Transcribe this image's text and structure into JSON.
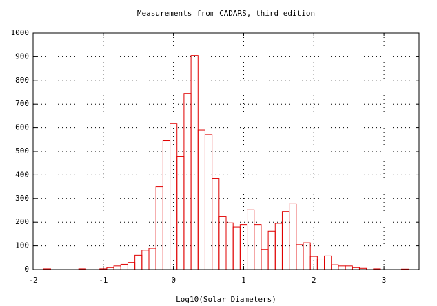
{
  "chart_data": {
    "type": "histogram",
    "title": "Measurements from CADARS, third edition",
    "xlabel": "Log10(Solar Diameters)",
    "bins": [
      -1.95,
      -1.85,
      -1.75,
      -1.65,
      -1.55,
      -1.45,
      -1.35,
      -1.25,
      -1.15,
      -1.05,
      -0.95,
      -0.85,
      -0.75,
      -0.65,
      -0.55,
      -0.45,
      -0.35,
      -0.25,
      -0.15,
      -0.05,
      0.05,
      0.15,
      0.25,
      0.35,
      0.45,
      0.55,
      0.65,
      0.75,
      0.85,
      0.95,
      1.05,
      1.15,
      1.25,
      1.35,
      1.45,
      1.55,
      1.65,
      1.75,
      1.85,
      1.95,
      2.05,
      2.15,
      2.25,
      2.35,
      2.45,
      2.55,
      2.65,
      2.75,
      2.85,
      2.95,
      3.05,
      3.15,
      3.25,
      3.35
    ],
    "values": [
      0,
      3,
      0,
      0,
      0,
      0,
      3,
      0,
      0,
      3,
      8,
      15,
      22,
      30,
      60,
      82,
      90,
      350,
      545,
      617,
      478,
      745,
      905,
      590,
      570,
      385,
      225,
      197,
      180,
      190,
      252,
      190,
      85,
      162,
      195,
      245,
      278,
      105,
      113,
      55,
      45,
      57,
      20,
      15,
      15,
      8,
      5,
      0,
      3,
      0,
      0,
      0,
      2
    ],
    "color": "#e00000",
    "xlim": [
      -2,
      3.5
    ],
    "ylim": [
      0,
      1000
    ],
    "xticks": [
      -2,
      -1,
      0,
      1,
      2,
      3
    ],
    "yticks": [
      0,
      100,
      200,
      300,
      400,
      500,
      600,
      700,
      800,
      900,
      1000
    ],
    "grid": true
  }
}
